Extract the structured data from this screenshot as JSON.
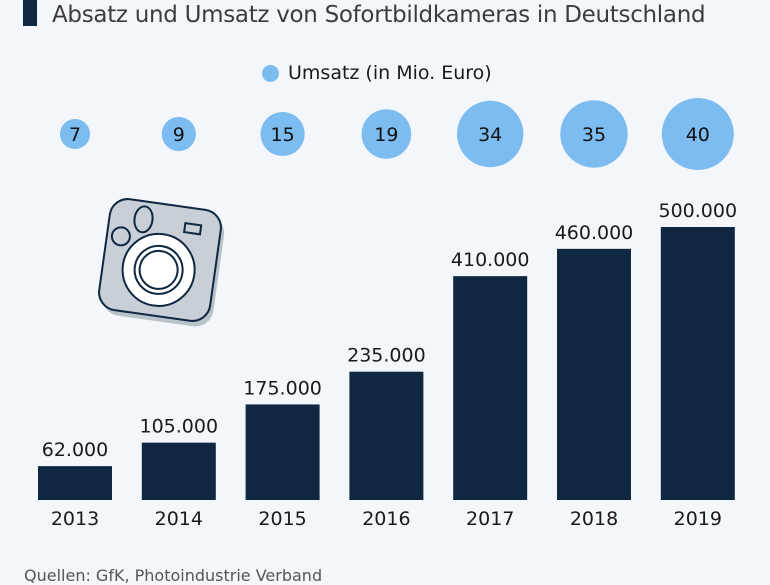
{
  "header": {
    "title": "Absatz und Umsatz von Sofortbildkameras in Deutschland"
  },
  "legend": {
    "label": "Umsatz (in Mio. Euro)",
    "color": "#7dbcf0"
  },
  "icons": {
    "camera": "instant-camera-icon"
  },
  "colors": {
    "bar": "#0f2741",
    "bubble": "#7dbcf0",
    "background": "#f3f7fb"
  },
  "footer": {
    "source": "Quellen: GfK, Photoindustrie Verband"
  },
  "chart_data": {
    "type": "bar",
    "title": "Absatz und Umsatz von Sofortbildkameras in Deutschland",
    "xlabel": "",
    "ylabel": "",
    "categories": [
      "2013",
      "2014",
      "2015",
      "2016",
      "2017",
      "2018",
      "2019"
    ],
    "series": [
      {
        "name": "Absatz",
        "values": [
          62000,
          105000,
          175000,
          235000,
          410000,
          460000,
          500000
        ],
        "labels": [
          "62.000",
          "105.000",
          "175.000",
          "235.000",
          "410.000",
          "460.000",
          "500.000"
        ]
      },
      {
        "name": "Umsatz (in Mio. Euro)",
        "kind": "bubble",
        "values": [
          7,
          9,
          15,
          19,
          34,
          35,
          40
        ],
        "labels": [
          "7",
          "9",
          "15",
          "19",
          "34",
          "35",
          "40"
        ]
      }
    ],
    "ylim": [
      0,
      500000
    ],
    "grid": false,
    "legend_position": "top-center"
  }
}
